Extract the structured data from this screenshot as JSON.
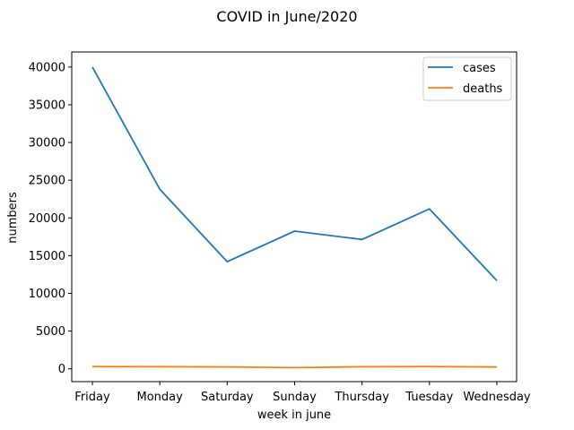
{
  "chart_data": {
    "type": "line",
    "title": "COVID in June/2020",
    "xlabel": "week in june",
    "ylabel": "numbers",
    "categories": [
      "Friday",
      "Monday",
      "Saturday",
      "Sunday",
      "Thursday",
      "Tuesday",
      "Wednesday"
    ],
    "series": [
      {
        "name": "cases",
        "color": "#1f77b4",
        "values": [
          40000,
          23800,
          14200,
          18250,
          17150,
          21200,
          11700
        ]
      },
      {
        "name": "deaths",
        "color": "#ff7f0e",
        "values": [
          300,
          280,
          250,
          150,
          270,
          290,
          230
        ]
      }
    ],
    "ylim": [
      -1700,
      42000
    ],
    "yticks": [
      0,
      5000,
      10000,
      15000,
      20000,
      25000,
      30000,
      35000,
      40000
    ],
    "grid": false,
    "legend": "top-right"
  }
}
